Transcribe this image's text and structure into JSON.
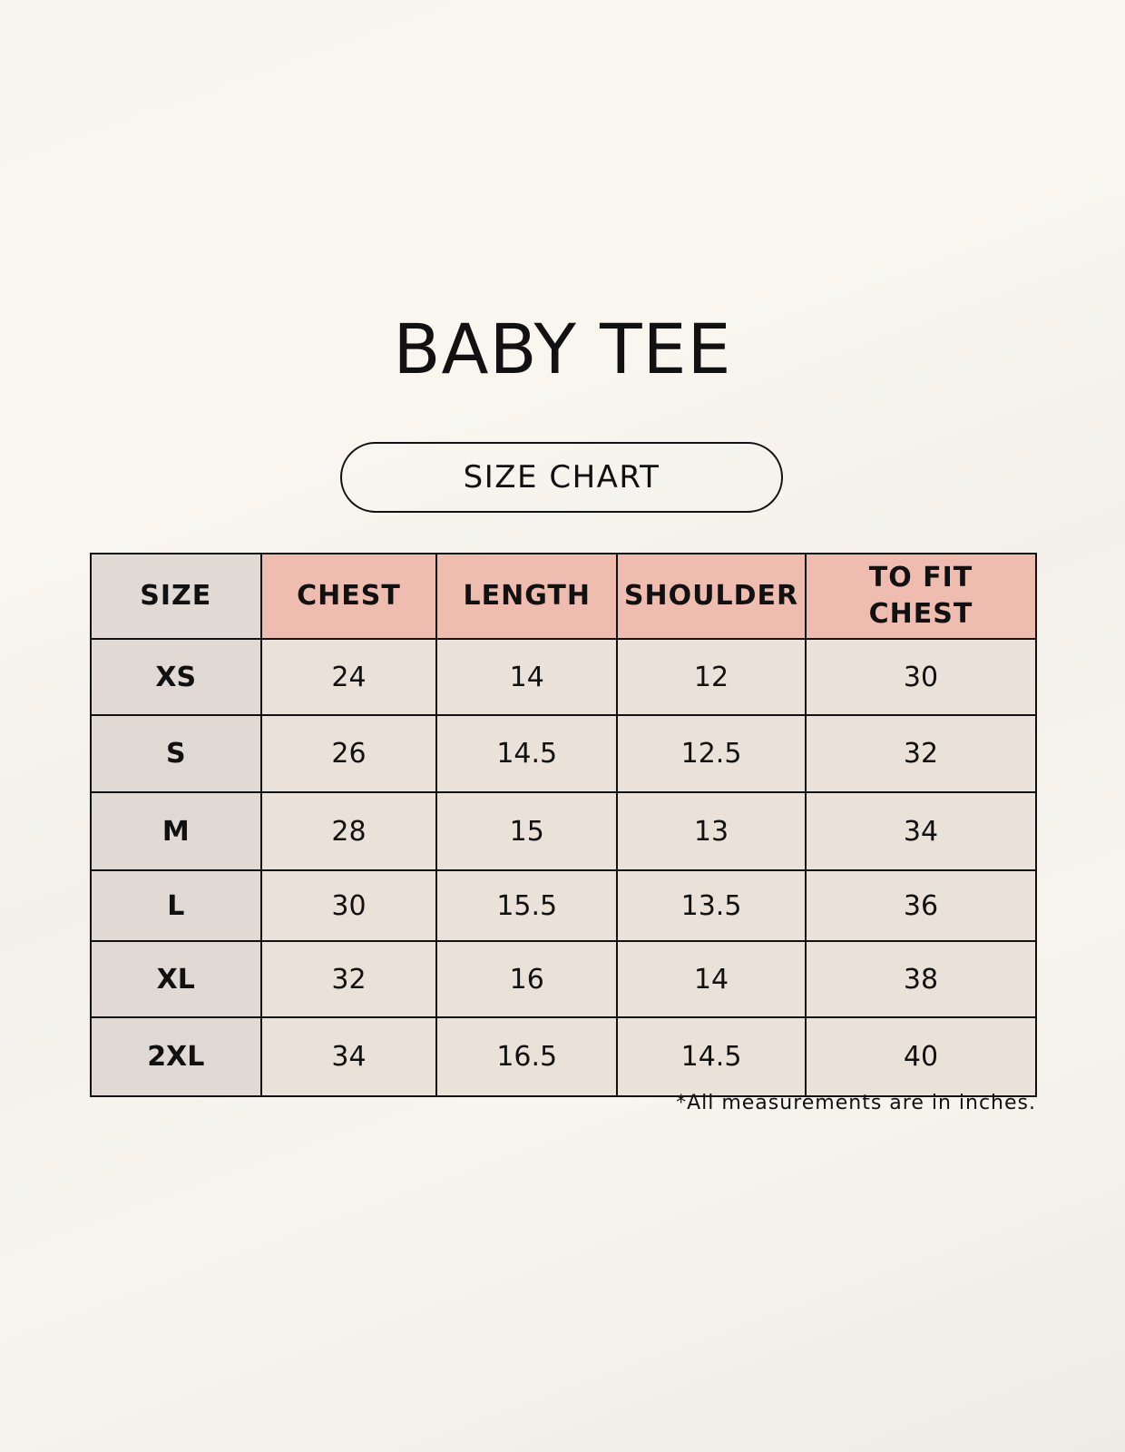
{
  "title": "BABY TEE",
  "subtitle": "SIZE CHART",
  "table": {
    "headers": [
      "SIZE",
      "CHEST",
      "LENGTH",
      "SHOULDER",
      "TO FIT CHEST"
    ],
    "rows": [
      [
        "XS",
        "24",
        "14",
        "12",
        "30"
      ],
      [
        "S",
        "26",
        "14.5",
        "12.5",
        "32"
      ],
      [
        "M",
        "28",
        "15",
        "13",
        "34"
      ],
      [
        "L",
        "30",
        "15.5",
        "13.5",
        "36"
      ],
      [
        "XL",
        "32",
        "16",
        "14",
        "38"
      ],
      [
        "2XL",
        "34",
        "16.5",
        "14.5",
        "40"
      ]
    ]
  },
  "footnote": "*All measurements are in inches.",
  "colors": {
    "header_accent": "#eebdaf",
    "size_column": "#e1d9d4",
    "cell": "#eae2d8"
  }
}
